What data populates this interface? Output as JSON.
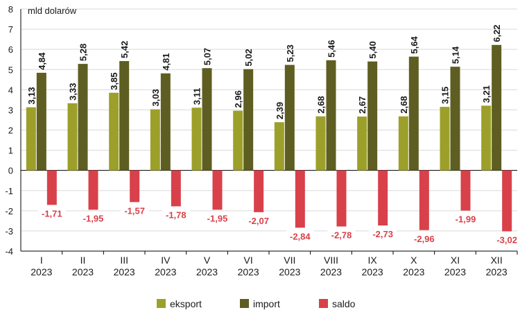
{
  "chart_data": {
    "type": "bar",
    "ylabel": "mld dolarów",
    "ylim": [
      -4,
      8
    ],
    "yticks": [
      -4,
      -3,
      -2,
      -1,
      0,
      1,
      2,
      3,
      4,
      5,
      6,
      7,
      8
    ],
    "grid": true,
    "legend_position": "bottom",
    "categories": [
      "I",
      "II",
      "III",
      "IV",
      "V",
      "VI",
      "VII",
      "VIII",
      "IX",
      "X",
      "XI",
      "XII"
    ],
    "category_year": "2023",
    "series": [
      {
        "name": "eksport",
        "color": "#9ca02a",
        "values": [
          3.13,
          3.33,
          3.85,
          3.03,
          3.11,
          2.96,
          2.39,
          2.68,
          2.67,
          2.68,
          3.15,
          3.21
        ],
        "labels": [
          "3,13",
          "3,33",
          "3,85",
          "3,03",
          "3,11",
          "2,96",
          "2,39",
          "2,68",
          "2,67",
          "2,68",
          "3,15",
          "3,21"
        ]
      },
      {
        "name": "import",
        "color": "#5e5e22",
        "values": [
          4.84,
          5.28,
          5.42,
          4.81,
          5.07,
          5.02,
          5.23,
          5.46,
          5.4,
          5.64,
          5.14,
          6.22
        ],
        "labels": [
          "4,84",
          "5,28",
          "5,42",
          "4,81",
          "5,07",
          "5,02",
          "5,23",
          "5,46",
          "5,40",
          "5,64",
          "5,14",
          "6,22"
        ]
      },
      {
        "name": "saldo",
        "color": "#d8414a",
        "values": [
          -1.71,
          -1.95,
          -1.57,
          -1.78,
          -1.95,
          -2.07,
          -2.84,
          -2.78,
          -2.73,
          -2.96,
          -1.99,
          -3.02
        ],
        "labels": [
          "-1,71",
          "-1,95",
          "-1,57",
          "-1,78",
          "-1,95",
          "-2,07",
          "-2,84",
          "-2,78",
          "-2,73",
          "-2,96",
          "-1,99",
          "-3,02"
        ]
      }
    ]
  }
}
